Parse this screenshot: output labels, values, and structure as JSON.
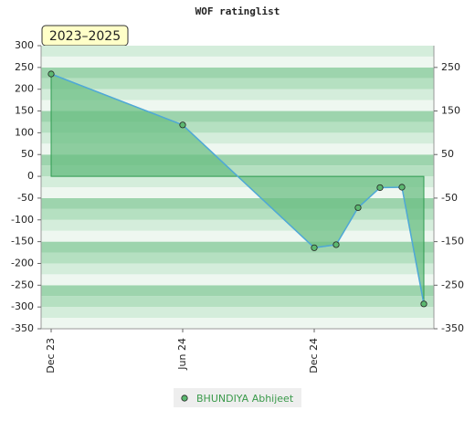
{
  "chart_data": {
    "type": "area",
    "title": "WOF ratinglist",
    "annotation": "2023–2025",
    "categories": [
      "Dec 23",
      null,
      null,
      null,
      null,
      null,
      "Jun 24",
      null,
      null,
      null,
      null,
      null,
      "Dec 24",
      null,
      null,
      null,
      null,
      null
    ],
    "series": [
      {
        "name": "BHUNDIYA Abhijeet",
        "color": "#6cbf84",
        "values": [
          235,
          null,
          null,
          null,
          null,
          null,
          118,
          null,
          null,
          null,
          null,
          null,
          -164,
          -157,
          -72,
          -26,
          -25,
          -293
        ]
      }
    ],
    "ylim": [
      -350,
      300
    ],
    "yticks": [
      -350,
      -300,
      -250,
      -200,
      -150,
      -100,
      -50,
      0,
      50,
      100,
      150,
      200,
      250,
      300
    ],
    "y2lim": [
      -350,
      300
    ],
    "y2ticks": [
      -350,
      -250,
      -150,
      -50,
      50,
      150,
      250
    ]
  }
}
